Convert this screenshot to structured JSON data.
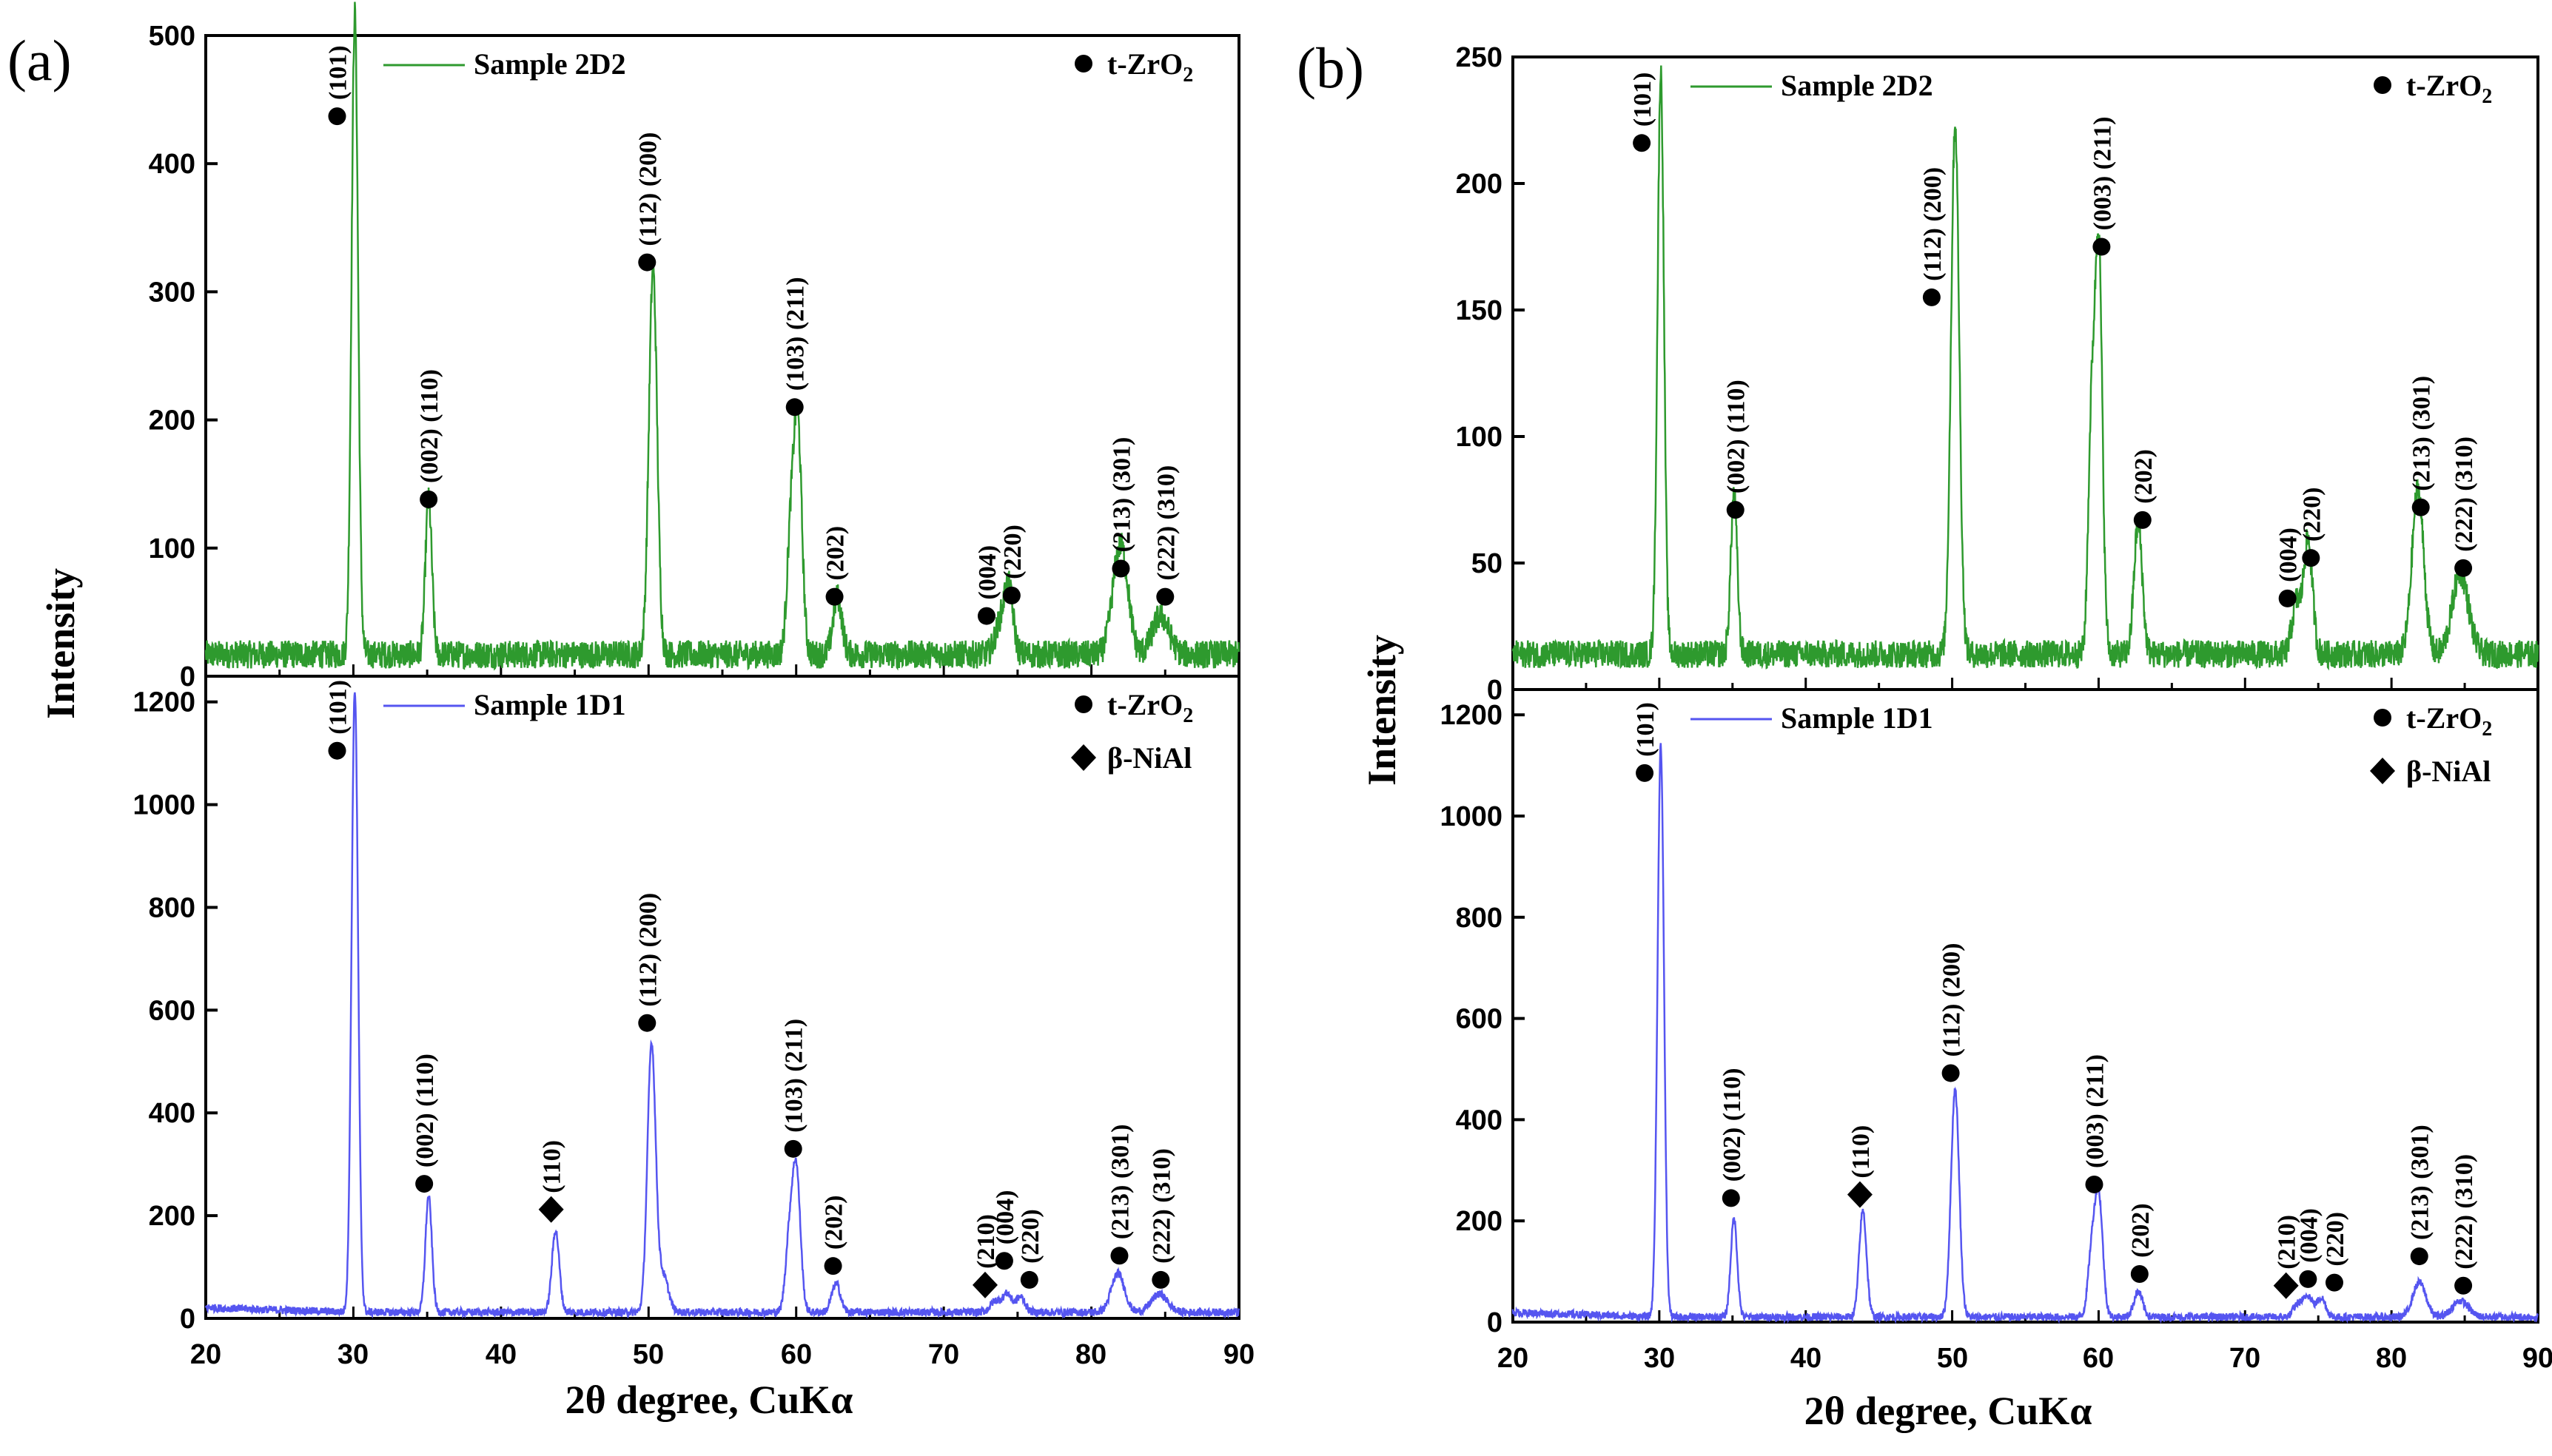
{
  "figure": {
    "panels": [
      {
        "letter": "(a)",
        "ylabel": "Intensity",
        "xlabel": "2θ degree, CuKα",
        "x_ticks": [
          "20",
          "30",
          "40",
          "50",
          "60",
          "70",
          "80",
          "90"
        ]
      },
      {
        "letter": "(b)",
        "ylabel": "Intensity",
        "xlabel": "2θ degree, CuKα",
        "x_ticks": [
          "20",
          "30",
          "40",
          "50",
          "60",
          "70",
          "80",
          "90"
        ]
      }
    ]
  },
  "colors": {
    "green": "#2e9a2e",
    "blue": "#5555f0",
    "marker": "#000000"
  },
  "chart_data": [
    {
      "id": "a-top",
      "type": "line",
      "series_name": "Sample 2D2",
      "color": "green",
      "xlim": [
        20,
        90
      ],
      "ylim": [
        0,
        500
      ],
      "yticks": [
        0,
        100,
        200,
        300,
        400,
        500
      ],
      "baseline": 17,
      "legend": {
        "series_label": "Sample 2D2",
        "phases": [
          {
            "marker": "circle",
            "label": "t-ZrO",
            "sub": "2"
          }
        ]
      },
      "peaks": [
        {
          "x": 30.1,
          "y": 500,
          "w": 0.22
        },
        {
          "x": 35.1,
          "y": 120,
          "w": 0.22
        },
        {
          "x": 50.3,
          "y": 300,
          "w": 0.28
        },
        {
          "x": 59.6,
          "y": 80,
          "w": 0.25
        },
        {
          "x": 60.1,
          "y": 180,
          "w": 0.28
        },
        {
          "x": 62.8,
          "y": 45,
          "w": 0.3
        },
        {
          "x": 73.8,
          "y": 22,
          "w": 0.35
        },
        {
          "x": 74.4,
          "y": 50,
          "w": 0.3
        },
        {
          "x": 81.8,
          "y": 65,
          "w": 0.45
        },
        {
          "x": 82.3,
          "y": 35,
          "w": 0.4
        },
        {
          "x": 84.7,
          "y": 30,
          "w": 0.55
        }
      ],
      "annotations": [
        {
          "x": 28.9,
          "y": 437,
          "marker": "circle",
          "label": "(101)"
        },
        {
          "x": 35.1,
          "y": 138,
          "marker": "circle",
          "label": "(002) (110)"
        },
        {
          "x": 49.9,
          "y": 323,
          "marker": "circle",
          "label": "(112) (200)"
        },
        {
          "x": 59.9,
          "y": 210,
          "marker": "circle",
          "label": "(103) (211)"
        },
        {
          "x": 62.6,
          "y": 62,
          "marker": "circle",
          "label": "(202)"
        },
        {
          "x": 72.9,
          "y": 47,
          "marker": "circle",
          "label": "(004)"
        },
        {
          "x": 74.6,
          "y": 63,
          "marker": "circle",
          "label": "(220)"
        },
        {
          "x": 82.0,
          "y": 84,
          "marker": "circle",
          "label": "(213) (301)"
        },
        {
          "x": 85.0,
          "y": 62,
          "marker": "circle",
          "label": "(222) (310)"
        }
      ]
    },
    {
      "id": "a-bottom",
      "type": "line",
      "series_name": "Sample 1D1",
      "color": "blue",
      "xlim": [
        20,
        90
      ],
      "ylim": [
        0,
        1250
      ],
      "yticks": [
        0,
        200,
        400,
        600,
        800,
        1000,
        1200
      ],
      "baseline": 12,
      "legend": {
        "series_label": "Sample 1D1",
        "phases": [
          {
            "marker": "circle",
            "label": "t-ZrO",
            "sub": "2"
          },
          {
            "marker": "diamond",
            "label": "β-NiAl",
            "sub": ""
          }
        ]
      },
      "peaks": [
        {
          "x": 30.1,
          "y": 1210,
          "w": 0.22
        },
        {
          "x": 35.1,
          "y": 225,
          "w": 0.22
        },
        {
          "x": 43.7,
          "y": 160,
          "w": 0.25
        },
        {
          "x": 50.2,
          "y": 520,
          "w": 0.28
        },
        {
          "x": 51.0,
          "y": 70,
          "w": 0.35
        },
        {
          "x": 59.5,
          "y": 120,
          "w": 0.25
        },
        {
          "x": 60.0,
          "y": 280,
          "w": 0.28
        },
        {
          "x": 62.7,
          "y": 55,
          "w": 0.3
        },
        {
          "x": 73.5,
          "y": 22,
          "w": 0.35
        },
        {
          "x": 74.3,
          "y": 35,
          "w": 0.3
        },
        {
          "x": 75.2,
          "y": 30,
          "w": 0.3
        },
        {
          "x": 81.8,
          "y": 75,
          "w": 0.45
        },
        {
          "x": 84.6,
          "y": 35,
          "w": 0.55
        }
      ],
      "annotations": [
        {
          "x": 28.9,
          "y": 1105,
          "marker": "circle",
          "label": "(101)"
        },
        {
          "x": 34.8,
          "y": 262,
          "marker": "circle",
          "label": "(002) (110)"
        },
        {
          "x": 43.4,
          "y": 212,
          "marker": "diamond",
          "label": "(110)"
        },
        {
          "x": 49.9,
          "y": 575,
          "marker": "circle",
          "label": "(112) (200)"
        },
        {
          "x": 59.8,
          "y": 330,
          "marker": "circle",
          "label": "(103) (211)"
        },
        {
          "x": 62.5,
          "y": 102,
          "marker": "circle",
          "label": "(202)"
        },
        {
          "x": 72.8,
          "y": 65,
          "marker": "diamond",
          "label": "(210)"
        },
        {
          "x": 74.1,
          "y": 112,
          "marker": "circle",
          "label": "(004)"
        },
        {
          "x": 75.8,
          "y": 75,
          "marker": "circle",
          "label": "(220)"
        },
        {
          "x": 81.9,
          "y": 122,
          "marker": "circle",
          "label": "(213) (301)"
        },
        {
          "x": 84.7,
          "y": 75,
          "marker": "circle",
          "label": "(222) (310)"
        }
      ]
    },
    {
      "id": "b-top",
      "type": "line",
      "series_name": "Sample 2D2",
      "color": "green",
      "xlim": [
        20,
        90
      ],
      "ylim": [
        0,
        250
      ],
      "yticks": [
        0,
        50,
        100,
        150,
        200,
        250
      ],
      "baseline": 14,
      "legend": {
        "series_label": "Sample 2D2",
        "phases": [
          {
            "marker": "circle",
            "label": "t-ZrO",
            "sub": "2"
          }
        ]
      },
      "peaks": [
        {
          "x": 30.1,
          "y": 230,
          "w": 0.22
        },
        {
          "x": 35.1,
          "y": 63,
          "w": 0.22
        },
        {
          "x": 50.2,
          "y": 210,
          "w": 0.28
        },
        {
          "x": 59.5,
          "y": 85,
          "w": 0.22
        },
        {
          "x": 60.0,
          "y": 163,
          "w": 0.25
        },
        {
          "x": 62.7,
          "y": 52,
          "w": 0.28
        },
        {
          "x": 73.5,
          "y": 20,
          "w": 0.3
        },
        {
          "x": 74.3,
          "y": 45,
          "w": 0.3
        },
        {
          "x": 81.8,
          "y": 65,
          "w": 0.4
        },
        {
          "x": 84.7,
          "y": 32,
          "w": 0.55
        }
      ],
      "annotations": [
        {
          "x": 28.8,
          "y": 216,
          "marker": "circle",
          "label": "(101)"
        },
        {
          "x": 35.2,
          "y": 71,
          "marker": "circle",
          "label": "(002) (110)"
        },
        {
          "x": 48.6,
          "y": 155,
          "marker": "circle",
          "label": "(112) (200)"
        },
        {
          "x": 60.2,
          "y": 175,
          "marker": "circle",
          "label": "(003) (211)"
        },
        {
          "x": 63.0,
          "y": 67,
          "marker": "circle",
          "label": "(202)"
        },
        {
          "x": 72.9,
          "y": 36,
          "marker": "circle",
          "label": "(004)"
        },
        {
          "x": 74.5,
          "y": 52,
          "marker": "circle",
          "label": "(220)"
        },
        {
          "x": 82.0,
          "y": 72,
          "marker": "circle",
          "label": "(213) (301)"
        },
        {
          "x": 84.9,
          "y": 48,
          "marker": "circle",
          "label": "(222) (310)"
        }
      ]
    },
    {
      "id": "b-bottom",
      "type": "line",
      "series_name": "Sample 1D1",
      "color": "blue",
      "xlim": [
        20,
        90
      ],
      "ylim": [
        0,
        1250
      ],
      "yticks": [
        0,
        200,
        400,
        600,
        800,
        1000,
        1200
      ],
      "baseline": 10,
      "legend": {
        "series_label": "Sample 1D1",
        "phases": [
          {
            "marker": "circle",
            "label": "t-ZrO",
            "sub": "2"
          },
          {
            "marker": "diamond",
            "label": "β-NiAl",
            "sub": ""
          }
        ]
      },
      "peaks": [
        {
          "x": 30.1,
          "y": 1130,
          "w": 0.22
        },
        {
          "x": 35.1,
          "y": 195,
          "w": 0.22
        },
        {
          "x": 43.9,
          "y": 210,
          "w": 0.25
        },
        {
          "x": 50.2,
          "y": 450,
          "w": 0.28
        },
        {
          "x": 59.5,
          "y": 110,
          "w": 0.25
        },
        {
          "x": 60.0,
          "y": 240,
          "w": 0.28
        },
        {
          "x": 62.7,
          "y": 50,
          "w": 0.3
        },
        {
          "x": 73.6,
          "y": 25,
          "w": 0.3
        },
        {
          "x": 74.3,
          "y": 42,
          "w": 0.3
        },
        {
          "x": 75.2,
          "y": 38,
          "w": 0.3
        },
        {
          "x": 81.9,
          "y": 68,
          "w": 0.45
        },
        {
          "x": 84.7,
          "y": 32,
          "w": 0.55
        }
      ],
      "annotations": [
        {
          "x": 29.0,
          "y": 1085,
          "marker": "circle",
          "label": "(101)"
        },
        {
          "x": 34.9,
          "y": 245,
          "marker": "circle",
          "label": "(002) (110)"
        },
        {
          "x": 43.7,
          "y": 252,
          "marker": "diamond",
          "label": "(110)"
        },
        {
          "x": 49.9,
          "y": 492,
          "marker": "circle",
          "label": "(112) (200)"
        },
        {
          "x": 59.7,
          "y": 272,
          "marker": "circle",
          "label": "(003) (211)"
        },
        {
          "x": 62.8,
          "y": 95,
          "marker": "circle",
          "label": "(202)"
        },
        {
          "x": 72.8,
          "y": 72,
          "marker": "diamond",
          "label": "(210)"
        },
        {
          "x": 74.3,
          "y": 85,
          "marker": "circle",
          "label": "(004)"
        },
        {
          "x": 76.1,
          "y": 78,
          "marker": "circle",
          "label": "(220)"
        },
        {
          "x": 81.9,
          "y": 130,
          "marker": "circle",
          "label": "(213) (301)"
        },
        {
          "x": 84.9,
          "y": 72,
          "marker": "circle",
          "label": "(222) (310)"
        }
      ]
    }
  ]
}
